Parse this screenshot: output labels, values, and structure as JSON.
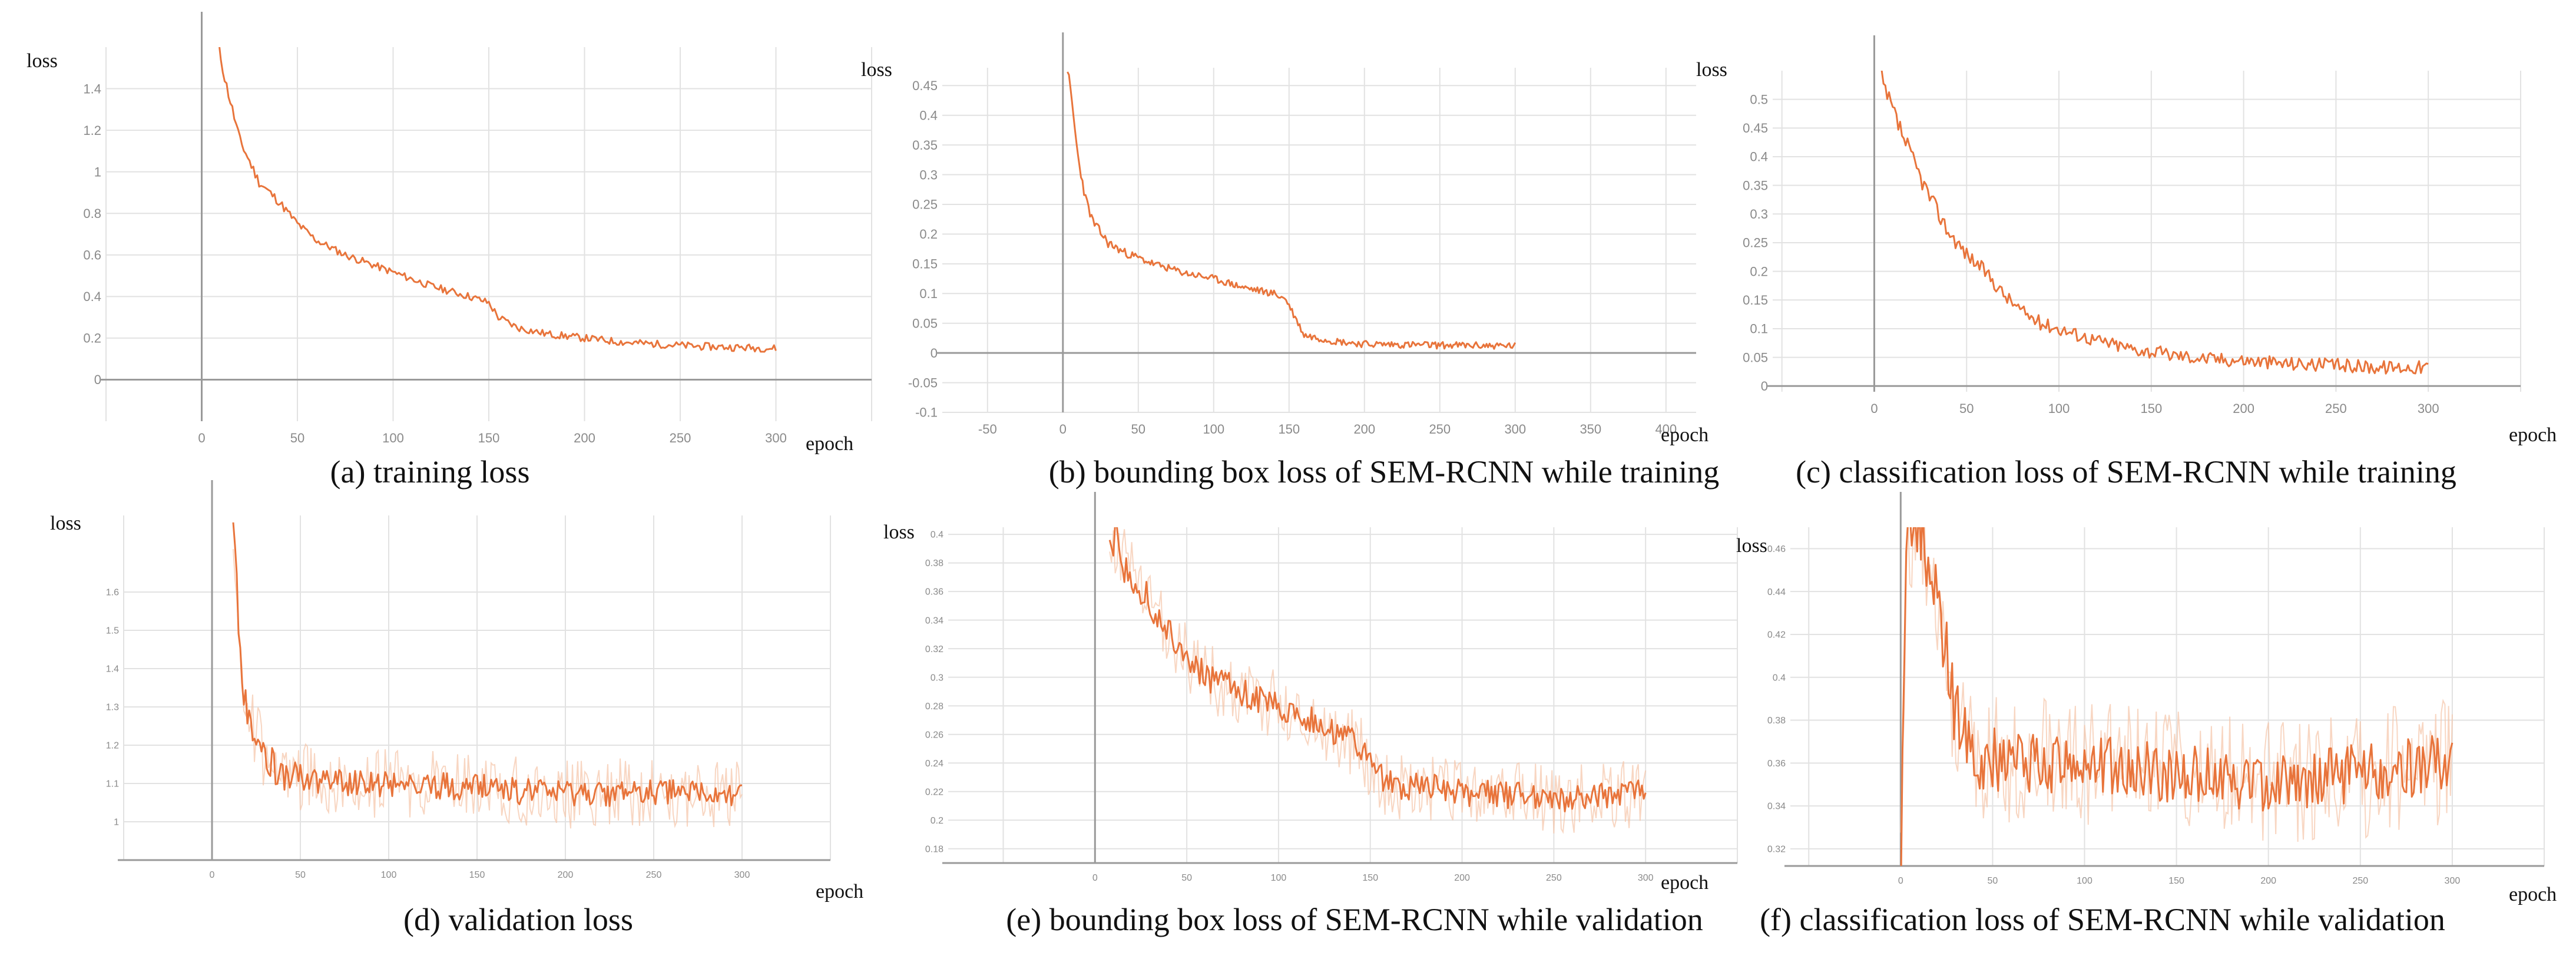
{
  "figure": {
    "series_color": "#e8743b",
    "band_color": "#f5c4a8",
    "grid_color": "#e2e2e2",
    "axis_color": "#9a9a9a"
  },
  "chart_data": [
    {
      "id": "a",
      "type": "line",
      "title": "(a) training loss",
      "xlabel": "epoch",
      "ylabel": "loss",
      "xlim": [
        -50,
        350
      ],
      "ylim": [
        -0.2,
        1.6
      ],
      "xticks": [
        0,
        50,
        100,
        150,
        200,
        250,
        300
      ],
      "yticks": [
        0,
        0.2,
        0.4,
        0.6,
        0.8,
        1,
        1.2,
        1.4
      ],
      "band": false,
      "noise": 0.018,
      "seed": 11,
      "x": [
        8,
        12,
        20,
        30,
        40,
        50,
        60,
        75,
        90,
        105,
        120,
        140,
        150,
        155,
        165,
        180,
        200,
        220,
        240,
        260,
        280,
        300
      ],
      "y": [
        1.65,
        1.45,
        1.15,
        0.95,
        0.86,
        0.75,
        0.67,
        0.6,
        0.55,
        0.5,
        0.45,
        0.4,
        0.37,
        0.3,
        0.25,
        0.22,
        0.2,
        0.18,
        0.17,
        0.16,
        0.155,
        0.15
      ]
    },
    {
      "id": "b",
      "type": "line",
      "title": "(b) bounding box loss of SEM-RCNN while training",
      "xlabel": "epoch",
      "ylabel": "loss",
      "xlim": [
        -80,
        420
      ],
      "ylim": [
        -0.1,
        0.48
      ],
      "xticks": [
        -50,
        0,
        50,
        100,
        150,
        200,
        250,
        300,
        350,
        400
      ],
      "yticks": [
        -0.1,
        -0.05,
        0,
        0.05,
        0.1,
        0.15,
        0.2,
        0.25,
        0.3,
        0.35,
        0.4,
        0.45
      ],
      "band": false,
      "noise": 0.006,
      "seed": 23,
      "x": [
        3,
        6,
        10,
        15,
        20,
        30,
        40,
        60,
        80,
        100,
        120,
        140,
        148,
        152,
        160,
        180,
        200,
        250,
        300
      ],
      "y": [
        0.48,
        0.42,
        0.33,
        0.26,
        0.22,
        0.185,
        0.17,
        0.15,
        0.135,
        0.125,
        0.11,
        0.1,
        0.09,
        0.07,
        0.03,
        0.02,
        0.015,
        0.013,
        0.012
      ]
    },
    {
      "id": "c",
      "type": "line",
      "title": "(c) classification loss of SEM-RCNN while training",
      "xlabel": "epoch",
      "ylabel": "loss",
      "xlim": [
        -55,
        350
      ],
      "ylim": [
        -0.01,
        0.55
      ],
      "xticks": [
        0,
        50,
        100,
        150,
        200,
        250,
        300
      ],
      "yticks": [
        0,
        0.05,
        0.1,
        0.15,
        0.2,
        0.25,
        0.3,
        0.35,
        0.4,
        0.45,
        0.5
      ],
      "band": false,
      "noise": 0.012,
      "seed": 37,
      "x": [
        2,
        5,
        10,
        15,
        20,
        30,
        40,
        50,
        60,
        70,
        80,
        90,
        100,
        120,
        140,
        160,
        180,
        200,
        220,
        250,
        275,
        300
      ],
      "y": [
        0.56,
        0.52,
        0.48,
        0.44,
        0.4,
        0.33,
        0.27,
        0.23,
        0.2,
        0.16,
        0.13,
        0.11,
        0.1,
        0.08,
        0.065,
        0.055,
        0.048,
        0.045,
        0.04,
        0.036,
        0.033,
        0.033
      ]
    },
    {
      "id": "d",
      "type": "line",
      "title": "(d) validation loss",
      "xlabel": "epoch",
      "ylabel": "loss",
      "xlim": [
        -50,
        350
      ],
      "ylim": [
        0.9,
        1.8
      ],
      "xticks": [
        0,
        50,
        100,
        150,
        200,
        250,
        300
      ],
      "yticks": [
        1,
        1.1,
        1.2,
        1.3,
        1.4,
        1.5,
        1.6
      ],
      "ytick_labels": [
        "1",
        "1.1",
        "1.2",
        "1.3",
        "1.4",
        "1.5",
        "1.6"
      ],
      "band": true,
      "noise": 0.035,
      "band_noise": 0.09,
      "seed": 53,
      "x": [
        12,
        15,
        18,
        20,
        25,
        30,
        40,
        60,
        80,
        100,
        150,
        200,
        250,
        300
      ],
      "y": [
        1.8,
        1.5,
        1.35,
        1.3,
        1.22,
        1.17,
        1.12,
        1.11,
        1.1,
        1.1,
        1.09,
        1.07,
        1.08,
        1.07
      ]
    },
    {
      "id": "e",
      "type": "line",
      "title": "(e) bounding box loss of SEM-RCNN while validation",
      "xlabel": "epoch",
      "ylabel": "loss",
      "xlim": [
        -80,
        350
      ],
      "ylim": [
        0.17,
        0.405
      ],
      "xticks": [
        0,
        50,
        100,
        150,
        200,
        250,
        300
      ],
      "yticks": [
        0.18,
        0.2,
        0.22,
        0.24,
        0.26,
        0.28,
        0.3,
        0.32,
        0.34,
        0.36,
        0.38,
        0.4
      ],
      "band": true,
      "noise": 0.01,
      "band_noise": 0.025,
      "seed": 71,
      "x": [
        8,
        12,
        20,
        30,
        40,
        60,
        80,
        100,
        120,
        140,
        150,
        160,
        200,
        250,
        300
      ],
      "y": [
        0.41,
        0.39,
        0.37,
        0.35,
        0.33,
        0.3,
        0.29,
        0.28,
        0.27,
        0.255,
        0.24,
        0.225,
        0.22,
        0.215,
        0.22
      ]
    },
    {
      "id": "f",
      "type": "line",
      "title": "(f) classification loss of SEM-RCNN while validation",
      "xlabel": "epoch",
      "ylabel": "loss",
      "xlim": [
        -60,
        350
      ],
      "ylim": [
        0.312,
        0.47
      ],
      "xticks": [
        0,
        50,
        100,
        150,
        200,
        250,
        300
      ],
      "yticks": [
        0.32,
        0.34,
        0.36,
        0.38,
        0.4,
        0.42,
        0.44,
        0.46
      ],
      "ytick_labels": [
        "0.32",
        "0.34",
        "0.36",
        "0.38",
        "0.4",
        "0.42",
        "0.44",
        "0.46"
      ],
      "band": true,
      "noise": 0.014,
      "band_noise": 0.03,
      "seed": 97,
      "x": [
        0,
        3,
        6,
        10,
        15,
        20,
        25,
        30,
        40,
        60,
        100,
        150,
        200,
        250,
        300
      ],
      "y": [
        0.31,
        0.45,
        0.47,
        0.47,
        0.46,
        0.43,
        0.41,
        0.38,
        0.365,
        0.36,
        0.36,
        0.355,
        0.35,
        0.355,
        0.36
      ]
    }
  ]
}
